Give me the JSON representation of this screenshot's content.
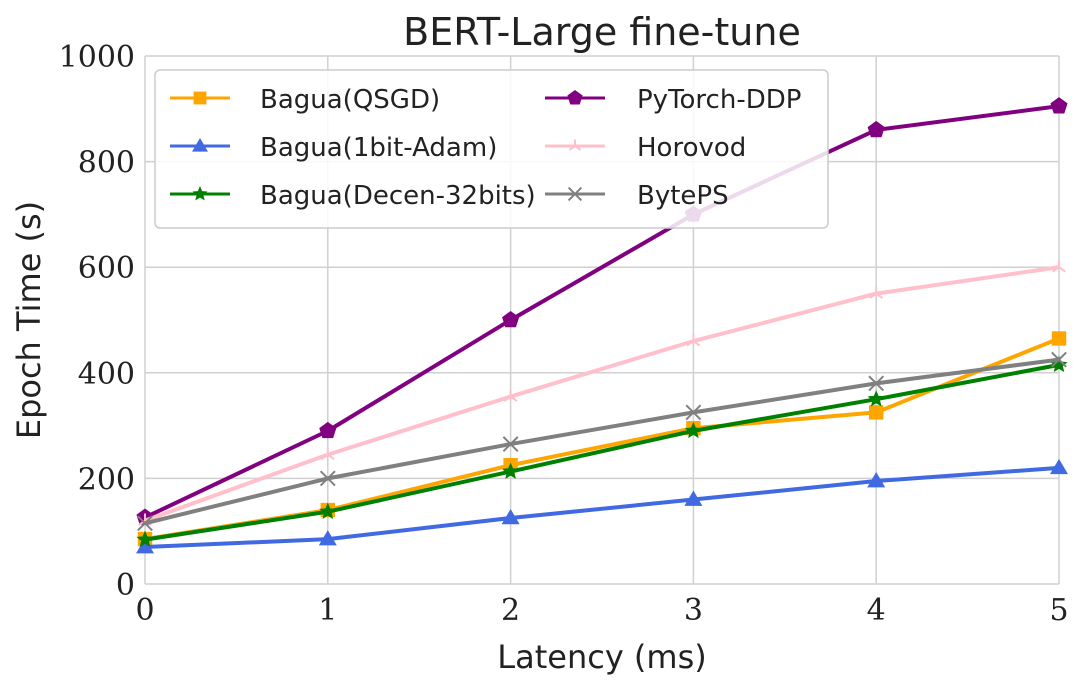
{
  "chart_data": {
    "type": "line",
    "title": "BERT-Large fine-tune",
    "xlabel": "Latency (ms)",
    "ylabel": "Epoch Time (s)",
    "xlim": [
      0,
      5
    ],
    "ylim": [
      0,
      1000
    ],
    "x": [
      0,
      1,
      2,
      3,
      4,
      5
    ],
    "xticks": [
      "0",
      "1",
      "2",
      "3",
      "4",
      "5"
    ],
    "yticks": [
      "0",
      "200",
      "400",
      "600",
      "800",
      "1000"
    ],
    "grid": true,
    "legend_placement": "top-left",
    "series": [
      {
        "name": "Bagua(QSGD)",
        "color": "#FFA500",
        "marker": "square",
        "values": [
          85,
          140,
          225,
          295,
          325,
          465
        ]
      },
      {
        "name": "Bagua(1bit-Adam)",
        "color": "#4169E1",
        "marker": "triangle",
        "values": [
          70,
          85,
          125,
          160,
          195,
          220
        ]
      },
      {
        "name": "Bagua(Decen-32bits)",
        "color": "#008000",
        "marker": "star",
        "values": [
          84,
          137,
          213,
          290,
          350,
          415
        ]
      },
      {
        "name": "PyTorch-DDP",
        "color": "#800080",
        "marker": "pentagon",
        "values": [
          126,
          290,
          500,
          700,
          860,
          905
        ]
      },
      {
        "name": "Horovod",
        "color": "#FFC0CB",
        "marker": "tri",
        "values": [
          120,
          245,
          355,
          460,
          550,
          600
        ]
      },
      {
        "name": "BytePS",
        "color": "#808080",
        "marker": "x",
        "values": [
          115,
          200,
          265,
          325,
          380,
          425
        ]
      }
    ]
  }
}
